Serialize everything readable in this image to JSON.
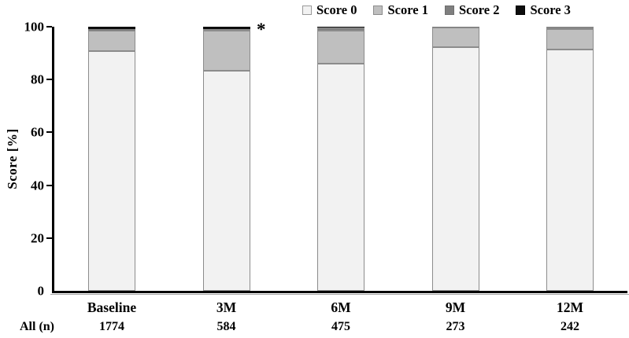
{
  "figure": {
    "background": "#ffffff",
    "text_color": "#000000"
  },
  "legend": {
    "items": [
      {
        "label": "Score 0",
        "color": "#f2f2f2",
        "border": "#999999"
      },
      {
        "label": "Score 1",
        "color": "#bfbfbf",
        "border": "#8c8c8c"
      },
      {
        "label": "Score 2",
        "color": "#7f7f7f",
        "border": "#6e6e6e"
      },
      {
        "label": "Score 3",
        "color": "#0d0d0d",
        "border": "#000000"
      }
    ]
  },
  "chart_data": {
    "type": "bar",
    "stacked": true,
    "orientation": "vertical",
    "title": "",
    "xlabel": "",
    "ylabel": "Score [%]",
    "ylim": [
      0,
      100
    ],
    "y_ticks": [
      0,
      20,
      40,
      60,
      80,
      100
    ],
    "grid": "off",
    "legend_position": "top-right",
    "categories": [
      "Baseline",
      "3M",
      "6M",
      "9M",
      "12M"
    ],
    "series": [
      {
        "name": "Score 0",
        "color": "#f2f2f2",
        "values": [
          90.8,
          83.2,
          85.9,
          92.4,
          91.5
        ]
      },
      {
        "name": "Score 1",
        "color": "#bfbfbf",
        "values": [
          7.8,
          15.2,
          12.6,
          7.2,
          7.5
        ]
      },
      {
        "name": "Score 2",
        "color": "#7f7f7f",
        "values": [
          0.5,
          0.8,
          1.3,
          0.4,
          0.9
        ]
      },
      {
        "name": "Score 3",
        "color": "#0d0d0d",
        "values": [
          0.9,
          0.8,
          0.2,
          0.0,
          0.1
        ]
      }
    ],
    "annotations": [
      {
        "text": "*",
        "category": "3M",
        "position": "right-of-bar-top"
      }
    ],
    "counts_row": {
      "label": "All (n)",
      "values": [
        "1774",
        "584",
        "475",
        "273",
        "242"
      ]
    }
  }
}
